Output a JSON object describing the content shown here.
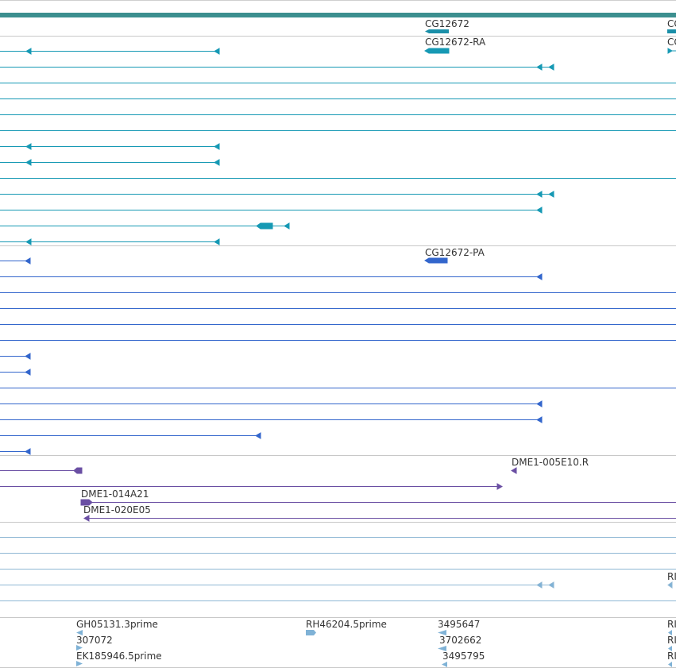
{
  "colors": {
    "header": "#3c8f8f",
    "teal": "#1699b4",
    "blue": "#3366cc",
    "purple": "#6a4fa3",
    "light": "#7fb2d6",
    "divider": "#c8c8c8",
    "text": "#333333"
  },
  "gene": {
    "label": "CG12672",
    "right_label_partial": "CG"
  },
  "teal_group": {
    "transcript_label": "CG12672-RA",
    "right_label_partial": "CG"
  },
  "blue_group": {
    "transcript_label": "CG12672-PA"
  },
  "purple_group": {
    "labels": [
      "DME1-005E10.R",
      "DME1-014A21",
      "DME1-020E05"
    ]
  },
  "light_group": {
    "right_label_partial": "RI"
  },
  "bottom_group": {
    "labels": [
      "GH05131.3prime",
      "307072",
      "EK185946.5prime",
      "RH46204.5prime",
      "3495647",
      "3702662",
      "3495795"
    ],
    "right_partials": [
      "RI",
      "RI",
      "RI"
    ]
  }
}
